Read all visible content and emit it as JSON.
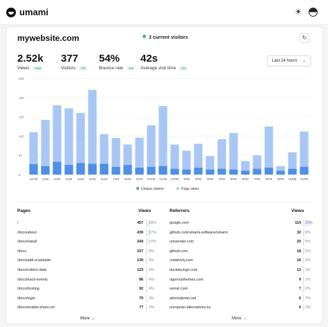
{
  "app": {
    "name": "umami"
  },
  "website": {
    "name": "mywebsite.com",
    "current_visitors": "3 current visitors"
  },
  "metrics": [
    {
      "value": "2.52k",
      "label": "Views",
      "change": "+994"
    },
    {
      "value": "377",
      "label": "Visitors",
      "change": "+92"
    },
    {
      "value": "54%",
      "label": "Bounce rate",
      "change": "-6%"
    },
    {
      "value": "42s",
      "label": "Average visit time",
      "change": "+8s"
    }
  ],
  "date_range": {
    "selected": "Last 24 hours"
  },
  "colors": {
    "unique_visitors": "#4e8fe8",
    "page_views": "#a9c7f5",
    "accent": "#38c172"
  },
  "chart_data": {
    "type": "bar",
    "categories": [
      "12AM",
      "1AM",
      "2AM",
      "3AM",
      "4AM",
      "5AM",
      "6AM",
      "7AM",
      "8AM",
      "9AM",
      "10AM",
      "11AM",
      "12PM",
      "1PM",
      "2PM",
      "3PM",
      "4PM",
      "5PM",
      "6PM",
      "7PM",
      "8PM",
      "9PM",
      "10PM",
      "11PM"
    ],
    "series": [
      {
        "name": "Unique visitors",
        "values": [
          27,
          22,
          33,
          25,
          30,
          28,
          28,
          20,
          25,
          18,
          20,
          22,
          15,
          13,
          18,
          13,
          15,
          13,
          10,
          15,
          18,
          10,
          15,
          20
        ]
      },
      {
        "name": "Page views",
        "values": [
          110,
          142,
          180,
          172,
          160,
          220,
          105,
          95,
          78,
          96,
          128,
          178,
          78,
          62,
          80,
          48,
          92,
          108,
          35,
          50,
          125,
          22,
          58,
          112
        ]
      }
    ],
    "ylim": [
      0,
      250
    ],
    "yticks": [
      "0",
      "50",
      "100",
      "150",
      "200",
      "250"
    ],
    "stacked": true,
    "grid": true,
    "legend": "bottom"
  },
  "pages": {
    "title": "Pages",
    "col": "Views",
    "rows": [
      {
        "name": "/",
        "count": "457",
        "pct": "18%",
        "share": 18
      },
      {
        "name": "/docs/about",
        "count": "439",
        "pct": "17%",
        "share": 17
      },
      {
        "name": "/docs/install",
        "count": "244",
        "pct": "10%",
        "share": 10
      },
      {
        "name": "/docs",
        "count": "157",
        "pct": "6%",
        "share": 6
      },
      {
        "name": "/docs/add-a-website",
        "count": "139",
        "pct": "6%",
        "share": 6
      },
      {
        "name": "/docs/collect-data",
        "count": "123",
        "pct": "5%",
        "share": 5
      },
      {
        "name": "/docs/track-events",
        "count": "96",
        "pct": "4%",
        "share": 4
      },
      {
        "name": "/docs/hosting",
        "count": "92",
        "pct": "4%",
        "share": 4
      },
      {
        "name": "/docs/login",
        "count": "79",
        "pct": "3%",
        "share": 3
      },
      {
        "name": "/docs/enable-share-url",
        "count": "77",
        "pct": "3%",
        "share": 3
      }
    ],
    "more": "More"
  },
  "referrers": {
    "title": "Referrers",
    "col": "Views",
    "rows": [
      {
        "name": "google.com",
        "count": "114",
        "pct": "30%",
        "share": 30
      },
      {
        "name": "github.com/umami-software/umami",
        "count": "32",
        "pct": "9%",
        "share": 9
      },
      {
        "name": "unisender.com",
        "count": "20",
        "pct": "5%",
        "share": 5
      },
      {
        "name": "github.com",
        "count": "18",
        "pct": "5%",
        "share": 5
      },
      {
        "name": "creatively.com",
        "count": "16",
        "pct": "4%",
        "share": 4
      },
      {
        "name": "duckduckgo.com",
        "count": "12",
        "pct": "3%",
        "share": 3
      },
      {
        "name": "rigorousthemes.com",
        "count": "9",
        "pct": "2%",
        "share": 2
      },
      {
        "name": "vercel.com",
        "count": "7",
        "pct": "2%",
        "share": 2
      },
      {
        "name": "alternativeto.net",
        "count": "6",
        "pct": "2%",
        "share": 2
      },
      {
        "name": "european-alternatives.eu",
        "count": "6",
        "pct": "2%",
        "share": 2
      }
    ],
    "more": "More"
  },
  "icons": {
    "logo": "umami-logo-icon",
    "theme": "sun-icon",
    "language": "globe-icon",
    "refresh": "refresh-icon",
    "more": "arrow-right-icon",
    "range": "chevron-down-icon"
  }
}
